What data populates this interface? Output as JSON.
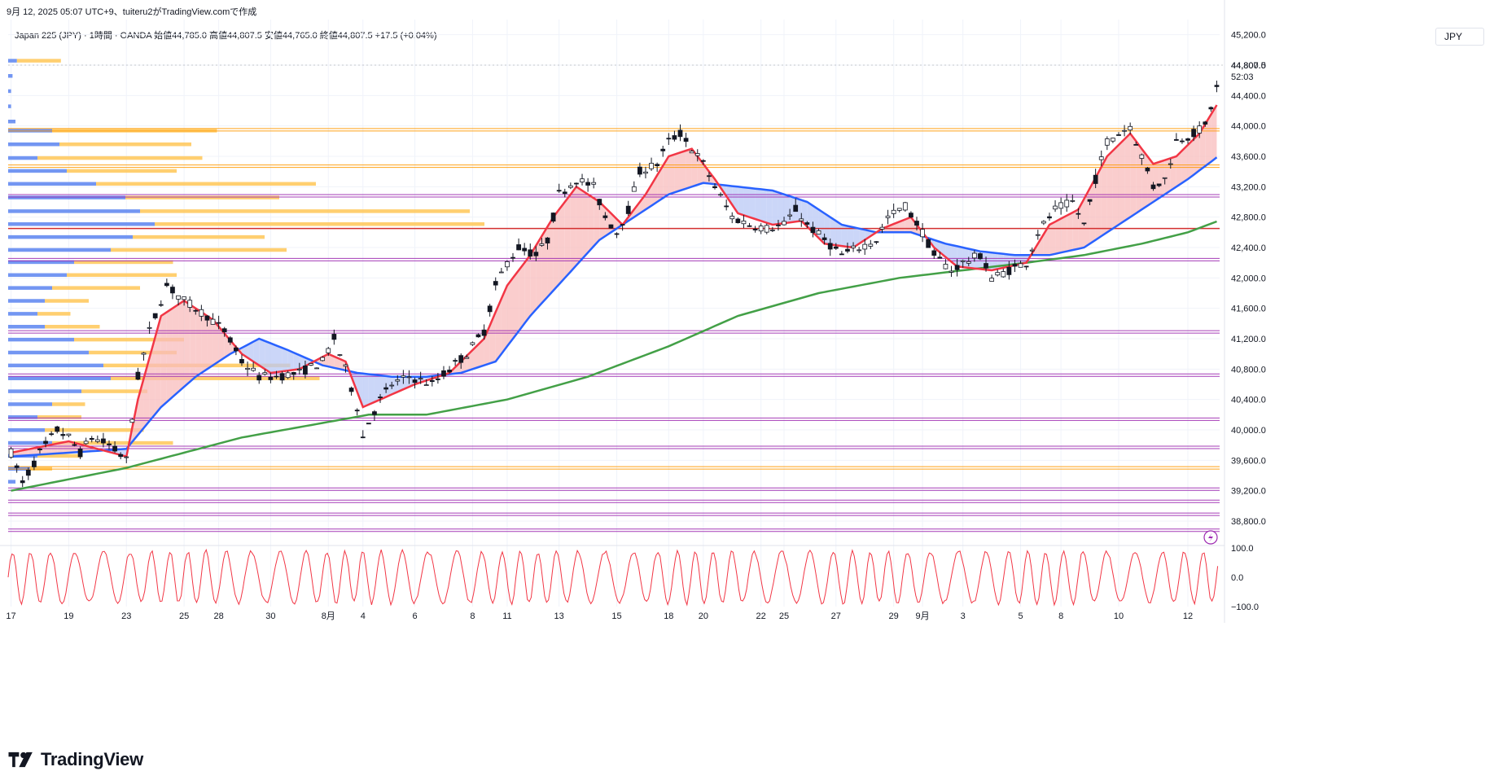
{
  "header": {
    "capture_text": "9月 12, 2025 05:07 UTC+9、tuiteru2がTradingView.comで作成",
    "legend_text": "Japan 225 (JPY) · 1時間 · OANDA  始値44,785.0  高値44,807.5  安値44,765.0  終値44,807.5  +17.5 (+0.04%)",
    "currency": "JPY"
  },
  "brand": {
    "name": "TradingView"
  },
  "price_tag": {
    "price": "44,807.5",
    "countdown": "52:03"
  },
  "colors": {
    "candles": "#131722",
    "ema_fast": "#f23645",
    "ema_slow": "#2962ff",
    "sma_long": "#43a047",
    "fill_bull": "#f8bcbc",
    "fill_bear": "#b9c8f5",
    "hline_purple": "#9c27b0",
    "hline_orange": "#ff9800",
    "hline_red": "#d32f2f",
    "osc": "#f23645",
    "vp_blue": "#5b84f0",
    "vp_orange": "#ffc757"
  },
  "chart_data": [
    {
      "type": "line",
      "instrument": "Japan 225 (JPY)",
      "timeframe": "1時間",
      "ylim": [
        38500,
        45400
      ],
      "y_ticks": [
        "45,200.0",
        "44,800.0",
        "44,400.0",
        "44,000.0",
        "43,600.0",
        "43,200.0",
        "42,800.0",
        "42,400.0",
        "42,000.0",
        "41,600.0",
        "41,200.0",
        "40,800.0",
        "40,400.0",
        "40,000.0",
        "39,600.0",
        "39,200.0",
        "38,800.0"
      ],
      "y_tick_values": [
        45200,
        44800,
        44400,
        44000,
        43600,
        43200,
        42800,
        42400,
        42000,
        41600,
        41200,
        40800,
        40400,
        40000,
        39600,
        39200,
        38800
      ],
      "x_ticks": [
        "17",
        "19",
        "23",
        "25",
        "28",
        "30",
        "8月",
        "4",
        "6",
        "8",
        "11",
        "13",
        "15",
        "18",
        "20",
        "22",
        "25",
        "27",
        "29",
        "9月",
        "3",
        "5",
        "8",
        "10",
        "12"
      ],
      "x_tick_index": [
        0,
        10,
        20,
        30,
        36,
        45,
        55,
        61,
        70,
        80,
        86,
        95,
        105,
        114,
        120,
        130,
        134,
        143,
        153,
        158,
        165,
        175,
        182,
        192,
        204
      ],
      "x_count": 210,
      "price_anchors": [
        [
          0,
          39700
        ],
        [
          2,
          39300
        ],
        [
          5,
          39700
        ],
        [
          8,
          40000
        ],
        [
          10,
          39900
        ],
        [
          12,
          39700
        ],
        [
          14,
          39900
        ],
        [
          17,
          39800
        ],
        [
          20,
          39600
        ],
        [
          22,
          40700
        ],
        [
          24,
          41300
        ],
        [
          27,
          41900
        ],
        [
          30,
          41700
        ],
        [
          34,
          41500
        ],
        [
          37,
          41300
        ],
        [
          40,
          40900
        ],
        [
          43,
          40700
        ],
        [
          46,
          40700
        ],
        [
          50,
          40750
        ],
        [
          54,
          40900
        ],
        [
          56,
          41200
        ],
        [
          58,
          40800
        ],
        [
          60,
          40300
        ],
        [
          61,
          39900
        ],
        [
          62,
          40100
        ],
        [
          64,
          40400
        ],
        [
          66,
          40600
        ],
        [
          69,
          40700
        ],
        [
          73,
          40600
        ],
        [
          76,
          40800
        ],
        [
          79,
          41000
        ],
        [
          82,
          41300
        ],
        [
          84,
          41900
        ],
        [
          86,
          42200
        ],
        [
          88,
          42400
        ],
        [
          91,
          42300
        ],
        [
          93,
          42500
        ],
        [
          95,
          43100
        ],
        [
          98,
          43300
        ],
        [
          101,
          43200
        ],
        [
          103,
          42800
        ],
        [
          105,
          42600
        ],
        [
          107,
          42900
        ],
        [
          109,
          43400
        ],
        [
          112,
          43500
        ],
        [
          114,
          43800
        ],
        [
          116,
          43900
        ],
        [
          118,
          43700
        ],
        [
          120,
          43500
        ],
        [
          122,
          43200
        ],
        [
          125,
          42800
        ],
        [
          128,
          42700
        ],
        [
          131,
          42650
        ],
        [
          134,
          42700
        ],
        [
          136,
          42900
        ],
        [
          138,
          42700
        ],
        [
          141,
          42500
        ],
        [
          144,
          42300
        ],
        [
          147,
          42400
        ],
        [
          150,
          42500
        ],
        [
          152,
          42800
        ],
        [
          155,
          42950
        ],
        [
          158,
          42600
        ],
        [
          160,
          42300
        ],
        [
          163,
          42100
        ],
        [
          165,
          42200
        ],
        [
          168,
          42300
        ],
        [
          170,
          42000
        ],
        [
          173,
          42100
        ],
        [
          176,
          42200
        ],
        [
          178,
          42600
        ],
        [
          181,
          42900
        ],
        [
          184,
          43000
        ],
        [
          186,
          42700
        ],
        [
          188,
          43300
        ],
        [
          190,
          43800
        ],
        [
          192,
          43900
        ],
        [
          194,
          44000
        ],
        [
          196,
          43600
        ],
        [
          198,
          43200
        ],
        [
          200,
          43300
        ],
        [
          202,
          43800
        ],
        [
          205,
          43900
        ],
        [
          207,
          44000
        ],
        [
          209,
          44500
        ],
        [
          211,
          44800
        ]
      ],
      "ema_fast_anchors": [
        [
          0,
          39700
        ],
        [
          10,
          39850
        ],
        [
          20,
          39650
        ],
        [
          22,
          40400
        ],
        [
          26,
          41500
        ],
        [
          30,
          41700
        ],
        [
          35,
          41450
        ],
        [
          40,
          41000
        ],
        [
          45,
          40750
        ],
        [
          50,
          40800
        ],
        [
          55,
          41000
        ],
        [
          58,
          40900
        ],
        [
          61,
          40300
        ],
        [
          64,
          40400
        ],
        [
          70,
          40600
        ],
        [
          76,
          40750
        ],
        [
          82,
          41200
        ],
        [
          86,
          41900
        ],
        [
          90,
          42300
        ],
        [
          94,
          42800
        ],
        [
          98,
          43200
        ],
        [
          102,
          43000
        ],
        [
          106,
          42700
        ],
        [
          110,
          43100
        ],
        [
          114,
          43600
        ],
        [
          118,
          43700
        ],
        [
          122,
          43300
        ],
        [
          126,
          42850
        ],
        [
          132,
          42700
        ],
        [
          137,
          42750
        ],
        [
          141,
          42450
        ],
        [
          146,
          42400
        ],
        [
          151,
          42650
        ],
        [
          156,
          42800
        ],
        [
          160,
          42400
        ],
        [
          164,
          42150
        ],
        [
          170,
          42100
        ],
        [
          176,
          42200
        ],
        [
          180,
          42700
        ],
        [
          185,
          42900
        ],
        [
          190,
          43600
        ],
        [
          194,
          43900
        ],
        [
          198,
          43500
        ],
        [
          202,
          43600
        ],
        [
          206,
          43900
        ],
        [
          210,
          44400
        ],
        [
          211,
          44600
        ]
      ],
      "ema_slow_anchors": [
        [
          0,
          39650
        ],
        [
          10,
          39700
        ],
        [
          20,
          39750
        ],
        [
          26,
          40300
        ],
        [
          32,
          40700
        ],
        [
          38,
          41000
        ],
        [
          43,
          41200
        ],
        [
          48,
          41050
        ],
        [
          54,
          40850
        ],
        [
          60,
          40750
        ],
        [
          66,
          40700
        ],
        [
          72,
          40700
        ],
        [
          78,
          40750
        ],
        [
          84,
          40900
        ],
        [
          90,
          41500
        ],
        [
          96,
          42000
        ],
        [
          102,
          42500
        ],
        [
          108,
          42800
        ],
        [
          114,
          43100
        ],
        [
          120,
          43250
        ],
        [
          126,
          43200
        ],
        [
          132,
          43150
        ],
        [
          138,
          43000
        ],
        [
          144,
          42700
        ],
        [
          150,
          42600
        ],
        [
          156,
          42600
        ],
        [
          162,
          42450
        ],
        [
          168,
          42350
        ],
        [
          174,
          42300
        ],
        [
          180,
          42300
        ],
        [
          186,
          42400
        ],
        [
          192,
          42700
        ],
        [
          198,
          43000
        ],
        [
          204,
          43300
        ],
        [
          211,
          43700
        ]
      ],
      "sma_long_anchors": [
        [
          0,
          39200
        ],
        [
          20,
          39500
        ],
        [
          40,
          39900
        ],
        [
          62,
          40200
        ],
        [
          72,
          40200
        ],
        [
          86,
          40400
        ],
        [
          100,
          40700
        ],
        [
          114,
          41100
        ],
        [
          126,
          41500
        ],
        [
          140,
          41800
        ],
        [
          154,
          42000
        ],
        [
          165,
          42100
        ],
        [
          176,
          42200
        ],
        [
          186,
          42300
        ],
        [
          196,
          42450
        ],
        [
          204,
          42600
        ],
        [
          211,
          42800
        ]
      ],
      "horizontal_levels": [
        {
          "price": 43950,
          "style": "orange"
        },
        {
          "price": 43470,
          "style": "orange"
        },
        {
          "price": 43080,
          "style": "purple"
        },
        {
          "price": 42650,
          "style": "red"
        },
        {
          "price": 42240,
          "style": "purple"
        },
        {
          "price": 41290,
          "style": "purple"
        },
        {
          "price": 40720,
          "style": "purple"
        },
        {
          "price": 40140,
          "style": "purple"
        },
        {
          "price": 39770,
          "style": "purple"
        },
        {
          "price": 39500,
          "style": "orange"
        },
        {
          "price": 39220,
          "style": "purple"
        },
        {
          "price": 39060,
          "style": "purple"
        },
        {
          "price": 38890,
          "style": "purple"
        },
        {
          "price": 38680,
          "style": "purple"
        }
      ],
      "volume_profile": [
        {
          "price": 44850,
          "blue": 12,
          "orange": 40
        },
        {
          "price": 44650,
          "blue": 6,
          "orange": 0
        },
        {
          "price": 44450,
          "blue": 4,
          "orange": 0
        },
        {
          "price": 44250,
          "blue": 4,
          "orange": 0
        },
        {
          "price": 44050,
          "blue": 10,
          "orange": 0
        },
        {
          "price": 43930,
          "blue": 60,
          "orange": 150
        },
        {
          "price": 43750,
          "blue": 70,
          "orange": 120
        },
        {
          "price": 43570,
          "blue": 40,
          "orange": 150
        },
        {
          "price": 43400,
          "blue": 80,
          "orange": 100
        },
        {
          "price": 43230,
          "blue": 120,
          "orange": 200
        },
        {
          "price": 43050,
          "blue": 160,
          "orange": 140
        },
        {
          "price": 42870,
          "blue": 180,
          "orange": 300
        },
        {
          "price": 42700,
          "blue": 200,
          "orange": 300
        },
        {
          "price": 42530,
          "blue": 170,
          "orange": 120
        },
        {
          "price": 42360,
          "blue": 140,
          "orange": 160
        },
        {
          "price": 42200,
          "blue": 90,
          "orange": 90
        },
        {
          "price": 42030,
          "blue": 80,
          "orange": 100
        },
        {
          "price": 41860,
          "blue": 60,
          "orange": 80
        },
        {
          "price": 41690,
          "blue": 50,
          "orange": 40
        },
        {
          "price": 41520,
          "blue": 40,
          "orange": 30
        },
        {
          "price": 41350,
          "blue": 50,
          "orange": 50
        },
        {
          "price": 41180,
          "blue": 90,
          "orange": 100
        },
        {
          "price": 41010,
          "blue": 110,
          "orange": 80
        },
        {
          "price": 40840,
          "blue": 130,
          "orange": 170
        },
        {
          "price": 40670,
          "blue": 140,
          "orange": 190
        },
        {
          "price": 40500,
          "blue": 100,
          "orange": 60
        },
        {
          "price": 40330,
          "blue": 60,
          "orange": 30
        },
        {
          "price": 40160,
          "blue": 40,
          "orange": 40
        },
        {
          "price": 39990,
          "blue": 50,
          "orange": 90
        },
        {
          "price": 39820,
          "blue": 60,
          "orange": 110
        },
        {
          "price": 39650,
          "blue": 40,
          "orange": 40
        },
        {
          "price": 39480,
          "blue": 30,
          "orange": 20
        },
        {
          "price": 39310,
          "blue": 10,
          "orange": 0
        }
      ],
      "oscillator": {
        "ylim": [
          -100,
          100
        ],
        "ticks": [
          "100.0",
          "0.0",
          "−100.0"
        ],
        "tick_values": [
          100,
          0,
          -100
        ]
      }
    }
  ]
}
